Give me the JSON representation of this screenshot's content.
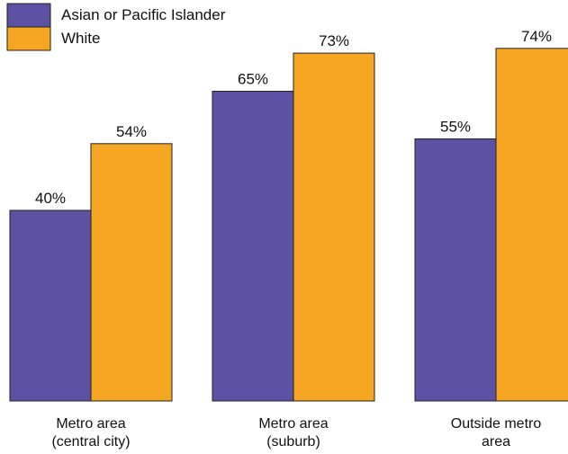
{
  "chart_data": {
    "type": "bar",
    "title": "",
    "xlabel": "",
    "ylabel": "",
    "ylim": [
      0,
      80
    ],
    "grid": false,
    "legend_position": "top-left",
    "value_format": "percent",
    "categories": [
      [
        "Metro area",
        "(central city)"
      ],
      [
        "Metro area",
        "(suburb)"
      ],
      [
        "Outside metro",
        "area"
      ]
    ],
    "series": [
      {
        "name": "Asian or Pacific Islander",
        "color": "#5B52A3",
        "values": [
          40,
          65,
          55
        ]
      },
      {
        "name": "White",
        "color": "#F5A623",
        "values": [
          54,
          73,
          74
        ]
      }
    ]
  }
}
